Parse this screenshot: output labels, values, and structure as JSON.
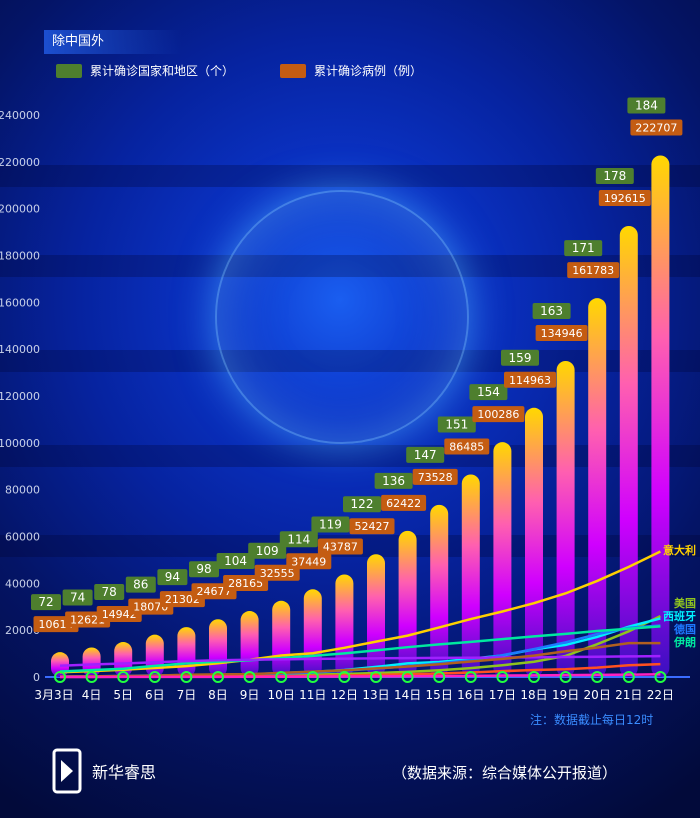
{
  "header": {
    "title": "除中国外"
  },
  "legend": [
    {
      "label": "累计确诊国家和地区（个）",
      "color": "#4e7f2e"
    },
    {
      "label": "累计确诊病例（例）",
      "color": "#c45c12"
    }
  ],
  "note": "注：数据截止每日12时",
  "source": "（数据来源：综合媒体公开报道）",
  "brand": "新华睿思",
  "chart_data": {
    "type": "bar+line",
    "categories": [
      "3月3日",
      "4日",
      "5日",
      "6日",
      "7日",
      "8日",
      "9日",
      "10日",
      "11日",
      "12日",
      "13日",
      "14日",
      "15日",
      "16日",
      "17日",
      "18日",
      "19日",
      "20日",
      "21日",
      "22日"
    ],
    "ylim": [
      0,
      240000
    ],
    "yticks": [
      0,
      20000,
      40000,
      60000,
      80000,
      100000,
      120000,
      140000,
      160000,
      180000,
      200000,
      220000,
      240000
    ],
    "countries": [
      72,
      74,
      78,
      86,
      94,
      98,
      104,
      109,
      114,
      119,
      122,
      136,
      147,
      151,
      154,
      159,
      163,
      171,
      178,
      184
    ],
    "cases": [
      10614,
      12621,
      14942,
      18070,
      21302,
      24677,
      28165,
      32555,
      37449,
      43787,
      52427,
      62422,
      73528,
      86485,
      100286,
      114963,
      134946,
      161783,
      192615,
      222707
    ],
    "lines": [
      {
        "name": "意大利",
        "color": "#ffd000",
        "values": [
          2036,
          2502,
          3089,
          3858,
          4636,
          5883,
          7375,
          9172,
          10149,
          12462,
          15113,
          17660,
          21157,
          24747,
          27980,
          31506,
          35713,
          41035,
          47021,
          53578
        ]
      },
      {
        "name": "美国",
        "color": "#8fc31f",
        "values": [
          100,
          120,
          160,
          220,
          330,
          420,
          540,
          750,
          1000,
          1300,
          1700,
          2200,
          2900,
          3800,
          5000,
          6500,
          9000,
          14000,
          19500,
          26000
        ]
      },
      {
        "name": "西班牙",
        "color": "#00f0ff",
        "values": [
          150,
          220,
          260,
          380,
          500,
          680,
          1100,
          1700,
          2200,
          3000,
          4300,
          5800,
          6400,
          7800,
          9200,
          11800,
          13700,
          17100,
          21500,
          25000
        ]
      },
      {
        "name": "德国",
        "color": "#1e78ff",
        "values": [
          190,
          260,
          480,
          670,
          800,
          1000,
          1200,
          1400,
          1900,
          2700,
          3600,
          4600,
          5800,
          7200,
          9300,
          11900,
          14800,
          18300,
          21000,
          22000
        ]
      },
      {
        "name": "伊朗",
        "color": "#00e8a0",
        "values": [
          2336,
          2922,
          3513,
          4747,
          5823,
          6566,
          7161,
          8042,
          9000,
          10075,
          11364,
          12729,
          13938,
          14991,
          16169,
          17361,
          18407,
          19644,
          20610,
          21638
        ]
      },
      {
        "color": "#a020ff",
        "values": [
          4812,
          5328,
          5766,
          6284,
          6767,
          7134,
          7382,
          7513,
          7755,
          7869,
          7979,
          8086,
          8162,
          8236,
          8320,
          8413,
          8565,
          8652,
          8799,
          8897
        ]
      },
      {
        "color": "#b06020",
        "values": [
          212,
          285,
          423,
          613,
          949,
          1126,
          1209,
          1784,
          2281,
          2876,
          3661,
          4499,
          5423,
          6633,
          7730,
          9134,
          10995,
          12612,
          14459,
          14459
        ]
      },
      {
        "color": "#ff5020",
        "values": [
          50,
          60,
          90,
          120,
          200,
          270,
          330,
          380,
          500,
          650,
          900,
          1200,
          1500,
          1900,
          2500,
          3000,
          3300,
          4000,
          5000,
          5500
        ]
      },
      {
        "color": "#ff20c0",
        "values": [
          10,
          20,
          30,
          40,
          60,
          80,
          100,
          120,
          150,
          200,
          250,
          300,
          400,
          500,
          600,
          700,
          800,
          900,
          1000,
          1200
        ]
      }
    ]
  }
}
